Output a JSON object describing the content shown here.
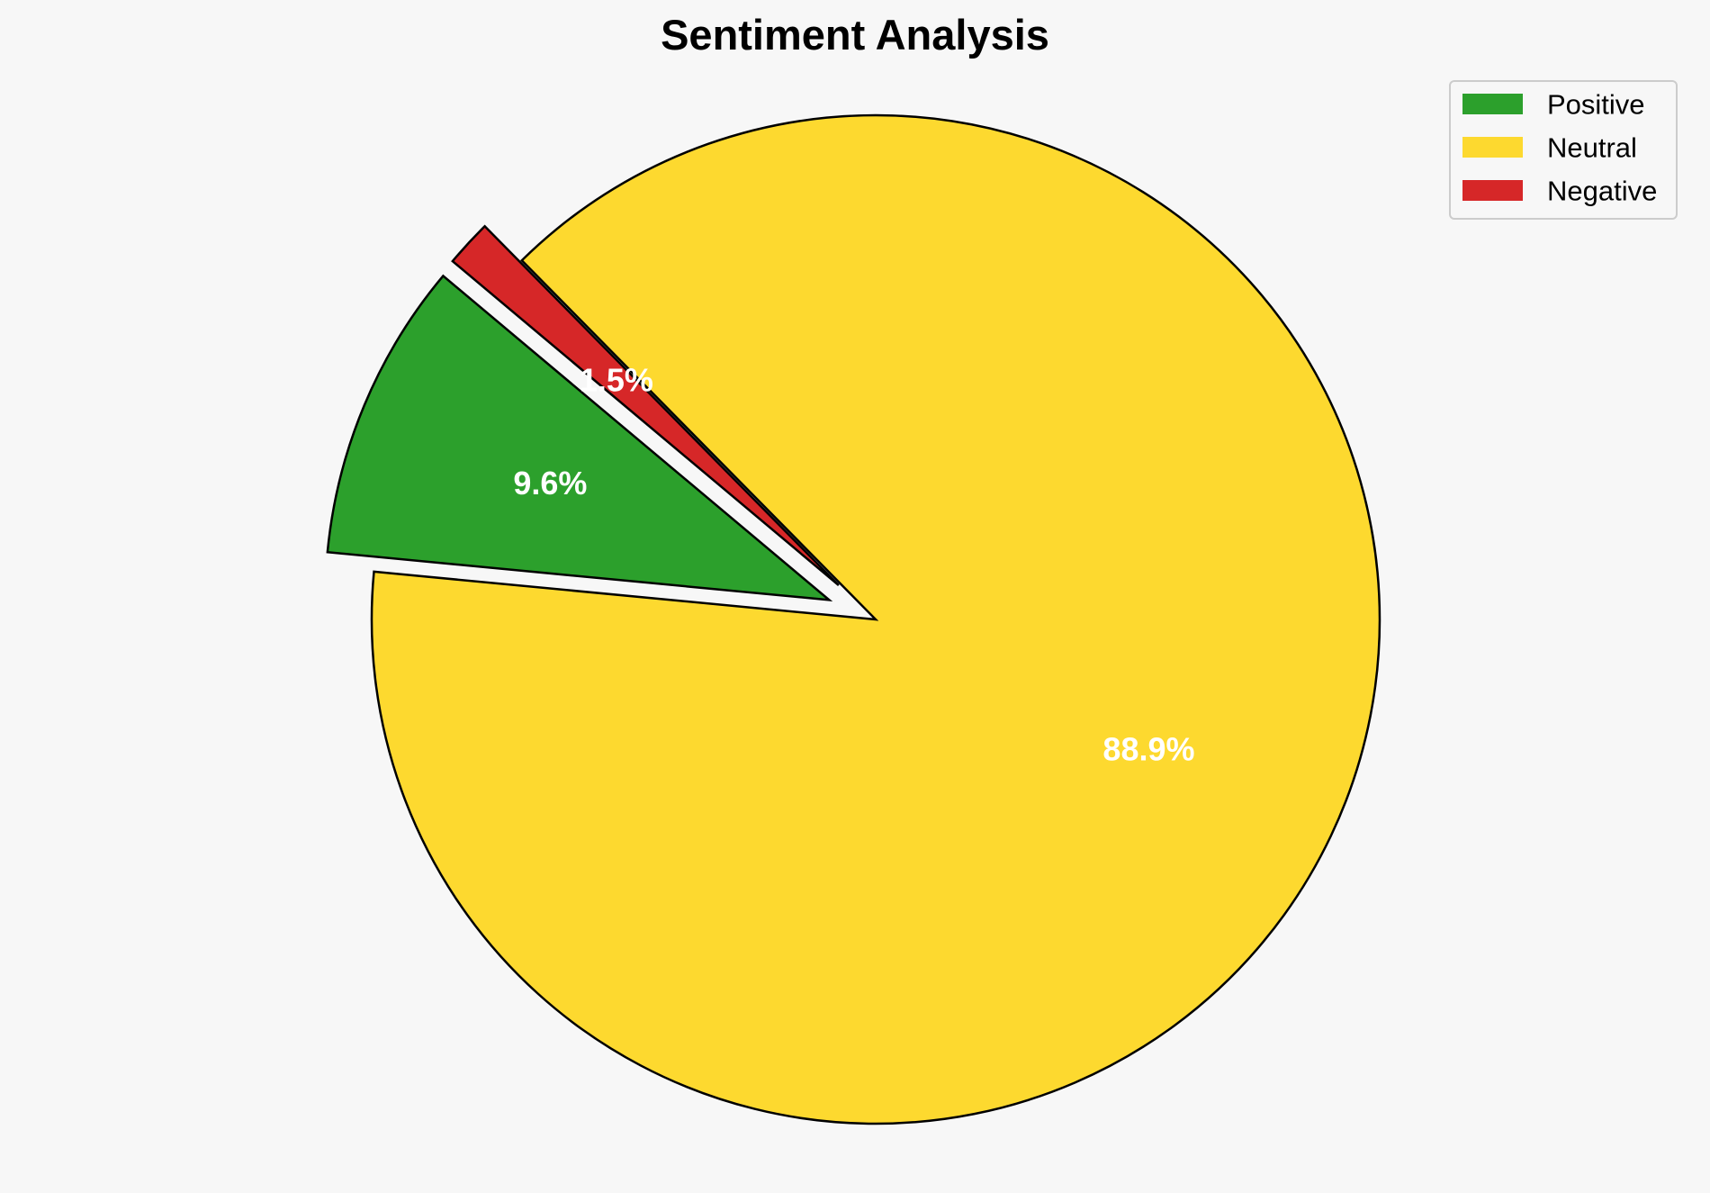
{
  "chart_data": {
    "type": "pie",
    "title": "Sentiment Analysis",
    "start_angle_deg": 140,
    "direction": "counterclockwise",
    "slices": [
      {
        "name": "Positive",
        "value": 9.6,
        "label": "9.6%",
        "color": "#2ca02c",
        "exploded": true
      },
      {
        "name": "Neutral",
        "value": 88.9,
        "label": "88.9%",
        "color": "#fdd92f",
        "exploded": false
      },
      {
        "name": "Negative",
        "value": 1.5,
        "label": "1.5%",
        "color": "#d62728",
        "exploded": true
      }
    ],
    "legend": {
      "placement": "top-right",
      "entries": [
        "Positive",
        "Neutral",
        "Negative"
      ]
    },
    "label_color": "#ffffff",
    "edge_color": "#000000",
    "background": "#f7f7f7"
  }
}
